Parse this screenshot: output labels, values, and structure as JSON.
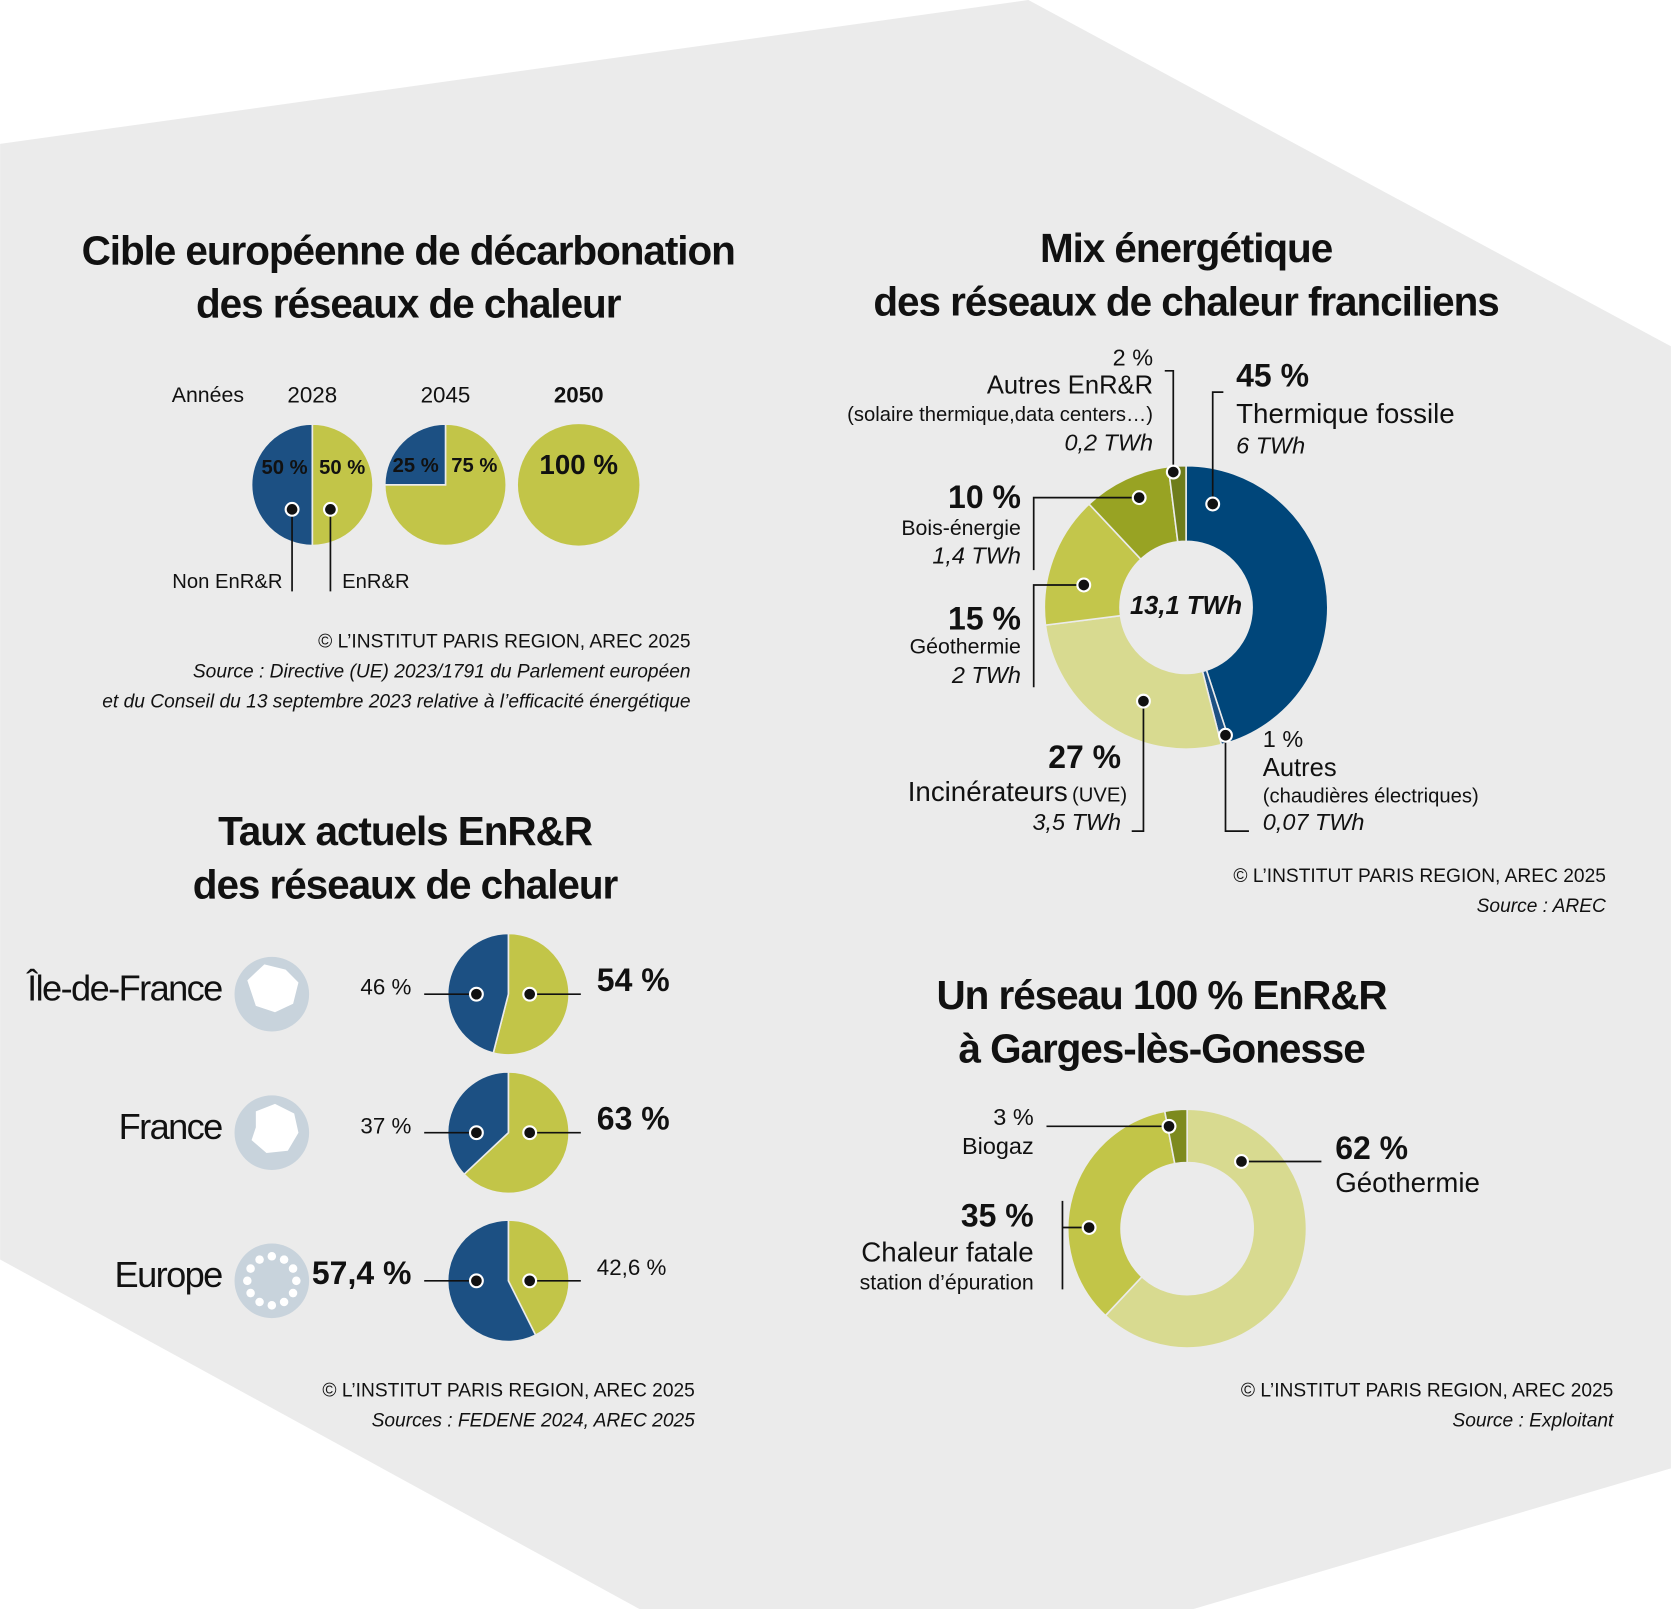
{
  "chart_data": [
    {
      "type": "pie",
      "title": [
        "Cible européenne de décarbonation",
        "des réseaux de chaleur"
      ],
      "category_label": "Années",
      "categories": [
        "2028",
        "2045",
        "2050"
      ],
      "series": [
        {
          "name": "Non EnR&R",
          "color": "#1c5083",
          "values": [
            50,
            25,
            null
          ],
          "value_labels": [
            "50 %",
            "25 %",
            null
          ]
        },
        {
          "name": "EnR&R",
          "color": "#c2c548",
          "values": [
            50,
            75,
            100
          ],
          "value_labels": [
            "50 %",
            "75 %",
            "100 %"
          ]
        }
      ],
      "credit": "© L’INSTITUT PARIS REGION, AREC 2025",
      "source": [
        "Source : Directive (UE) 2023/1791 du Parlement européen",
        "et du Conseil du 13 septembre 2023 relative à l’efficacité énergétique"
      ]
    },
    {
      "type": "donut",
      "title": [
        "Mix énergétique",
        "des réseaux de chaleur franciliens"
      ],
      "center_label": "13,1 TWh",
      "categories": [
        "Thermique fossile",
        "Autres",
        "Incinérateurs",
        "Géothermie",
        "Bois-énergie",
        "Autres EnR&R"
      ],
      "details": [
        null,
        "(chaudières électriques)",
        "(UVE)",
        null,
        null,
        "(solaire thermique,data centers…)"
      ],
      "values": [
        45,
        1,
        27,
        15,
        10,
        2
      ],
      "value_labels": [
        "45 %",
        "1 %",
        "27 %",
        "15 %",
        "10 %",
        "2 %"
      ],
      "energy_labels": [
        "6 TWh",
        "0,07 TWh",
        "3,5 TWh",
        "2 TWh",
        "1,4 TWh",
        "0,2 TWh"
      ],
      "colors": [
        "#00467a",
        "#1c5083",
        "#d8da90",
        "#c3c64b",
        "#98a323",
        "#6f7d1c"
      ],
      "credit": "© L’INSTITUT PARIS REGION, AREC 2025",
      "source": [
        "Source : AREC"
      ]
    },
    {
      "type": "pie",
      "title": [
        "Taux actuels EnR&R",
        "des réseaux de chaleur"
      ],
      "categories": [
        "Île-de-France",
        "France",
        "Europe"
      ],
      "series": [
        {
          "color": "#1c5083",
          "values": [
            46,
            37,
            57.4
          ],
          "value_labels": [
            "46 %",
            "37 %",
            "57,4 %"
          ]
        },
        {
          "color": "#c2c548",
          "values": [
            54,
            63,
            42.6
          ],
          "value_labels": [
            "54 %",
            "63 %",
            "42,6 %"
          ]
        }
      ],
      "credit": "© L’INSTITUT PARIS REGION, AREC 2025",
      "source": [
        "Sources : FEDENE 2024, AREC 2025"
      ]
    },
    {
      "type": "donut",
      "title": [
        "Un réseau 100 % EnR&R",
        "à Garges-lès-Gonesse"
      ],
      "categories": [
        "Géothermie",
        "Chaleur fatale",
        "Biogaz"
      ],
      "details": [
        null,
        "station d’épuration",
        null
      ],
      "values": [
        62,
        35,
        3
      ],
      "value_labels": [
        "62 %",
        "35 %",
        "3 %"
      ],
      "colors": [
        "#d8da90",
        "#c2c548",
        "#7d8a1e"
      ],
      "credit": "© L’INSTITUT PARIS REGION, AREC 2025",
      "source": [
        "Source : Exploitant"
      ]
    }
  ]
}
